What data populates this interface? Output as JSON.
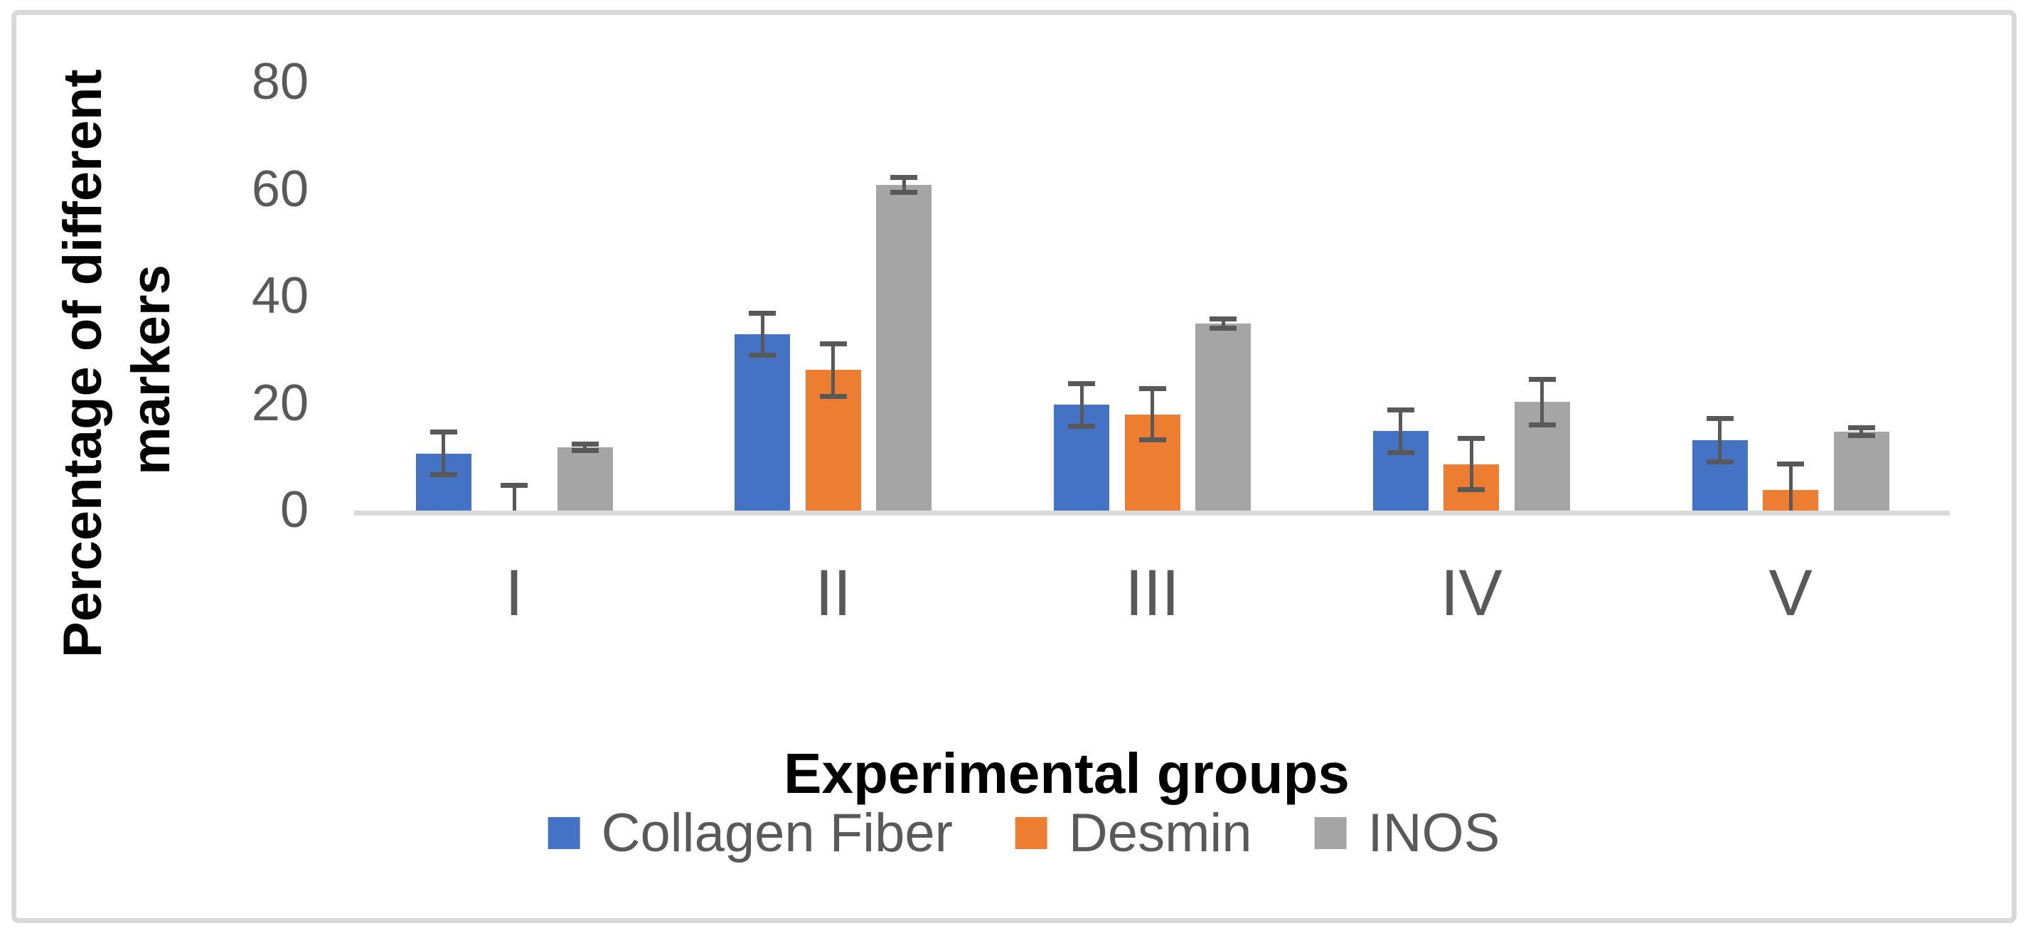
{
  "figure": {
    "background": "#ffffff",
    "border_color": "#d9d9d9"
  },
  "chart_data": {
    "type": "bar",
    "title": "",
    "xlabel": "Experimental groups",
    "ylabel": "Percentage of different markers",
    "ylabel_lines": [
      "Percentage of different",
      "markers"
    ],
    "categories": [
      "I",
      "II",
      "III",
      "IV",
      "V"
    ],
    "y_ticks": [
      0,
      20,
      40,
      60,
      80
    ],
    "ylim": [
      0,
      80
    ],
    "grid": false,
    "legend_position": "bottom-center",
    "series": [
      {
        "name": "Collagen Fiber",
        "color": "#4472C4",
        "values": [
          11.2,
          33.5,
          20.3,
          15.4,
          13.7
        ],
        "errors": [
          4.0,
          3.9,
          4.0,
          4.0,
          4.0
        ]
      },
      {
        "name": "Desmin",
        "color": "#ED7D31",
        "values": [
          0.5,
          26.8,
          18.5,
          9.2,
          4.4
        ],
        "errors": [
          4.8,
          4.9,
          4.8,
          4.8,
          4.9
        ]
      },
      {
        "name": "INOS",
        "color": "#A5A5A5",
        "values": [
          12.4,
          61.4,
          35.5,
          20.8,
          15.3
        ],
        "errors": [
          0.6,
          1.4,
          0.9,
          4.3,
          0.7
        ]
      }
    ],
    "error_bar_color": "#595959",
    "axis_line_color": "#D9D9D9",
    "tick_label_color": "#595959",
    "category_label_color": "#595959",
    "legend_text_color": "#595959",
    "title_text_color": "#000000"
  }
}
